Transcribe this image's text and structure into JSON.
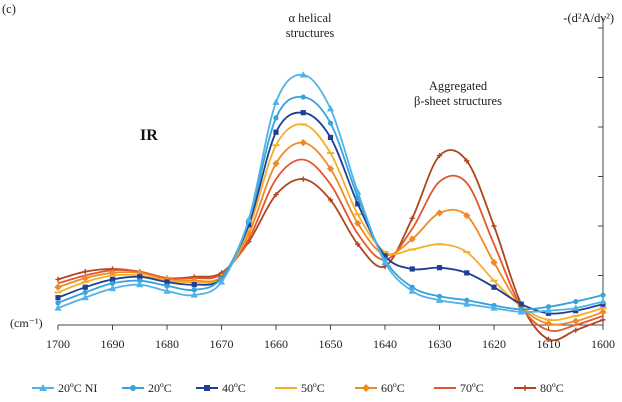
{
  "panel_label": "(c)",
  "chart_data": {
    "type": "line",
    "title": "",
    "xlabel": "(cm⁻¹)",
    "ylabel": "-(d²A/dν²)",
    "inset_label": "IR",
    "annotations": [
      {
        "text_lines": [
          "α helical",
          "structures"
        ]
      },
      {
        "text_lines": [
          "Aggregated",
          "β-sheet structures"
        ]
      }
    ],
    "x_reversed": true,
    "xlim": [
      1600,
      1700
    ],
    "ylim": [
      0,
      1.14
    ],
    "y_tick_labels_shown": false,
    "y_ticks": [
      0,
      0.19,
      0.38,
      0.57,
      0.76,
      0.95,
      1.14
    ],
    "x_ticks": [
      1700,
      1690,
      1680,
      1670,
      1660,
      1650,
      1640,
      1630,
      1620,
      1610,
      1600
    ],
    "legend_position": "bottom",
    "series": [
      {
        "name": "20ºC NI",
        "color": "#4fb3e8",
        "marker": "triangle",
        "x": [
          1700,
          1695,
          1690,
          1685,
          1680,
          1675,
          1670,
          1665,
          1660,
          1655,
          1650,
          1645,
          1640,
          1635,
          1630,
          1625,
          1620,
          1615,
          1610,
          1605,
          1600
        ],
        "y": [
          0.065,
          0.105,
          0.14,
          0.155,
          0.13,
          0.115,
          0.165,
          0.405,
          0.855,
          0.96,
          0.83,
          0.51,
          0.24,
          0.13,
          0.095,
          0.08,
          0.065,
          0.05,
          0.055,
          0.065,
          0.09
        ]
      },
      {
        "name": "20ºC",
        "color": "#37a2dc",
        "marker": "circle",
        "x": [
          1700,
          1695,
          1690,
          1685,
          1680,
          1675,
          1670,
          1665,
          1660,
          1655,
          1650,
          1645,
          1640,
          1635,
          1630,
          1625,
          1620,
          1615,
          1610,
          1605,
          1600
        ],
        "y": [
          0.085,
          0.125,
          0.16,
          0.17,
          0.15,
          0.135,
          0.18,
          0.4,
          0.795,
          0.875,
          0.775,
          0.49,
          0.25,
          0.145,
          0.11,
          0.095,
          0.075,
          0.06,
          0.07,
          0.09,
          0.115
        ]
      },
      {
        "name": "40ºC",
        "color": "#1f3f94",
        "marker": "square",
        "x": [
          1700,
          1695,
          1690,
          1685,
          1680,
          1675,
          1670,
          1665,
          1660,
          1655,
          1650,
          1645,
          1640,
          1635,
          1630,
          1625,
          1620,
          1615,
          1610,
          1605,
          1600
        ],
        "y": [
          0.105,
          0.145,
          0.175,
          0.185,
          0.165,
          0.155,
          0.18,
          0.385,
          0.74,
          0.815,
          0.72,
          0.465,
          0.265,
          0.215,
          0.22,
          0.2,
          0.145,
          0.08,
          0.045,
          0.055,
          0.08
        ]
      },
      {
        "name": "50ºC",
        "color": "#f5b02a",
        "marker": "dash",
        "x": [
          1700,
          1695,
          1690,
          1685,
          1680,
          1675,
          1670,
          1665,
          1660,
          1655,
          1650,
          1645,
          1640,
          1635,
          1630,
          1625,
          1620,
          1615,
          1610,
          1605,
          1600
        ],
        "y": [
          0.125,
          0.165,
          0.19,
          0.19,
          0.17,
          0.165,
          0.18,
          0.37,
          0.69,
          0.77,
          0.66,
          0.425,
          0.28,
          0.29,
          0.31,
          0.28,
          0.17,
          0.07,
          0.02,
          0.035,
          0.065
        ]
      },
      {
        "name": "60ºC",
        "color": "#f08a28",
        "marker": "diamond",
        "x": [
          1700,
          1695,
          1690,
          1685,
          1680,
          1675,
          1670,
          1665,
          1660,
          1655,
          1650,
          1645,
          1640,
          1635,
          1630,
          1625,
          1620,
          1615,
          1610,
          1605,
          1600
        ],
        "y": [
          0.145,
          0.18,
          0.2,
          0.2,
          0.175,
          0.17,
          0.185,
          0.35,
          0.62,
          0.7,
          0.6,
          0.39,
          0.27,
          0.33,
          0.43,
          0.42,
          0.24,
          0.07,
          0.005,
          0.015,
          0.05
        ]
      },
      {
        "name": "70ºC",
        "color": "#e4572e",
        "marker": "none",
        "x": [
          1700,
          1695,
          1690,
          1685,
          1680,
          1675,
          1670,
          1665,
          1660,
          1655,
          1650,
          1645,
          1640,
          1635,
          1630,
          1625,
          1620,
          1615,
          1610,
          1605,
          1600
        ],
        "y": [
          0.16,
          0.19,
          0.21,
          0.205,
          0.18,
          0.18,
          0.195,
          0.33,
          0.56,
          0.635,
          0.54,
          0.35,
          0.25,
          0.37,
          0.55,
          0.545,
          0.31,
          0.07,
          -0.02,
          0.0,
          0.035
        ]
      },
      {
        "name": "80ºC",
        "color": "#b0451c",
        "marker": "plus",
        "x": [
          1700,
          1695,
          1690,
          1685,
          1680,
          1675,
          1670,
          1665,
          1660,
          1655,
          1650,
          1645,
          1640,
          1635,
          1630,
          1625,
          1620,
          1615,
          1610,
          1605,
          1600
        ],
        "y": [
          0.175,
          0.205,
          0.215,
          0.205,
          0.18,
          0.185,
          0.2,
          0.32,
          0.5,
          0.56,
          0.48,
          0.31,
          0.225,
          0.41,
          0.65,
          0.63,
          0.38,
          0.08,
          -0.055,
          -0.02,
          0.02
        ]
      }
    ]
  }
}
